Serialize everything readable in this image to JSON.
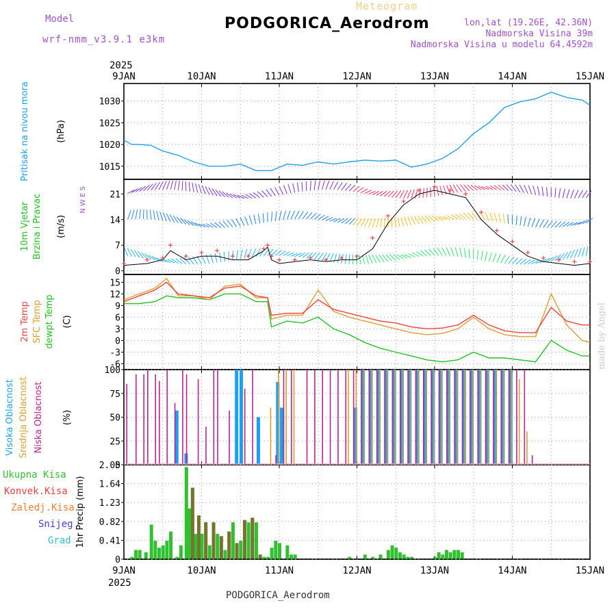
{
  "header": {
    "title": "PODGORICA_Aerodrom",
    "subtitle": "Meteogram",
    "model_label": "Model",
    "model_name": "wrf-nmm_v3.9.1 e3km",
    "lonlat": "lon,lat (19.26E, 42.36N)",
    "altitude": "Nadmorska Visina 39m",
    "model_altitude": "Nadmorska Visina u modelu 64.4592m",
    "year_top": "2025",
    "year_bottom": "2025",
    "footer": "PODGORICA_Aerodrom",
    "credit": "made by Angel"
  },
  "colors": {
    "pressure": "#1ea0f0",
    "wind_label": "#20c020",
    "temp2m": "#f04040",
    "sfc": "#d8a030",
    "dewpt": "#20c020",
    "high_cloud": "#1ea0f0",
    "mid_cloud": "#d8a030",
    "low_cloud": "#c02090",
    "rain": "#30c030",
    "conv": "#f04040",
    "frz": "#f08030",
    "snow": "#4040e0",
    "grad": "#30c0c0",
    "purple": "#a050d0"
  },
  "chart_data": [
    {
      "type": "line",
      "panel": "pressure",
      "ylabel_main": "Pritisak na nivou mora",
      "ylabel_unit": "(hPa)",
      "ylim": [
        1012,
        1034
      ],
      "yticks": [
        1015,
        1020,
        1025,
        1030
      ],
      "x_days": [
        0,
        0.1,
        0.2,
        0.35,
        0.5,
        0.7,
        0.9,
        1.1,
        1.3,
        1.5,
        1.7,
        1.9,
        2.1,
        2.3,
        2.5,
        2.7,
        2.9,
        3.1,
        3.3,
        3.5,
        3.7,
        3.9,
        4.1,
        4.3,
        4.5,
        4.7,
        4.9,
        5.1,
        5.3,
        5.5,
        5.7,
        5.9,
        6.0
      ],
      "values": [
        1021,
        1020,
        1020,
        1019.8,
        1018.5,
        1017.5,
        1016,
        1015,
        1015,
        1015.5,
        1014,
        1014,
        1015.5,
        1015.2,
        1016,
        1015.5,
        1016,
        1016.4,
        1016.2,
        1016.4,
        1014.8,
        1015.5,
        1016.8,
        1019,
        1022.5,
        1025,
        1028.5,
        1029.8,
        1030.5,
        1032,
        1030.8,
        1030.2,
        1029
      ]
    },
    {
      "type": "line",
      "panel": "wind",
      "ylabel_main": "10m Vjetar",
      "ylabel_main2": "Brzina i Pravac",
      "ylabel_unit": "(m/s)",
      "compass": "N W E S",
      "ylim": [
        -1,
        25
      ],
      "yticks": [
        0,
        7,
        14,
        21
      ],
      "x_days": [
        0,
        0.3,
        0.5,
        0.6,
        0.8,
        1.0,
        1.2,
        1.4,
        1.6,
        1.8,
        1.85,
        1.9,
        2.0,
        2.2,
        2.4,
        2.6,
        2.8,
        3.0,
        3.2,
        3.4,
        3.6,
        3.8,
        4.0,
        4.2,
        4.4,
        4.6,
        4.8,
        5.0,
        5.2,
        5.4,
        5.6,
        5.8,
        6.0
      ],
      "speed": [
        1.5,
        2,
        3,
        5.5,
        3,
        4,
        4,
        3,
        3,
        5.5,
        6.5,
        3,
        2,
        2.5,
        3,
        2.5,
        3,
        3,
        6,
        13,
        18,
        21,
        22,
        21,
        20,
        14,
        10,
        7,
        4,
        2.5,
        2,
        1.5,
        2
      ],
      "gust": [
        2,
        3,
        3.5,
        7,
        4,
        5,
        5.5,
        4,
        4,
        6,
        7,
        4,
        3,
        3,
        3.5,
        3,
        3.5,
        4,
        9,
        15,
        19,
        22,
        23,
        22,
        21,
        16,
        11,
        8,
        5,
        3.5,
        3,
        2.5,
        2.5
      ]
    },
    {
      "type": "line",
      "panel": "temperature",
      "ylabel_main": "2m Temp",
      "ylabel_main2": "SFC Temp",
      "ylabel_main3": "dewpt Temp",
      "ylabel_unit": "(C)",
      "ylim": [
        -7.5,
        17
      ],
      "yticks": [
        -6,
        -3,
        0,
        3,
        6,
        9,
        12,
        15
      ],
      "x_days": [
        0,
        0.2,
        0.4,
        0.55,
        0.7,
        0.9,
        1.1,
        1.3,
        1.5,
        1.7,
        1.85,
        1.9,
        2.1,
        2.3,
        2.5,
        2.7,
        2.9,
        3.1,
        3.3,
        3.5,
        3.7,
        3.9,
        4.1,
        4.3,
        4.5,
        4.7,
        4.9,
        5.1,
        5.3,
        5.5,
        5.7,
        5.9,
        6.0
      ],
      "temp2m": [
        10,
        11.5,
        13,
        15,
        12,
        11.5,
        11,
        13.5,
        14,
        11.5,
        11,
        6.5,
        7,
        7,
        10.5,
        8,
        7,
        6,
        5,
        4.5,
        3.5,
        3,
        3.2,
        4,
        6.5,
        4,
        2.5,
        2,
        2,
        8.5,
        5,
        4,
        4
      ],
      "sfc": [
        10.5,
        12,
        13.5,
        16,
        11.5,
        11.5,
        10.5,
        14,
        14.5,
        11,
        11,
        5.5,
        6.5,
        6.5,
        13,
        7.5,
        6,
        5,
        4,
        3,
        2,
        1.5,
        1.8,
        3,
        6,
        3,
        1.5,
        1,
        1,
        12,
        4,
        0,
        -0.5
      ],
      "dewpt": [
        9.5,
        9.5,
        10,
        11.5,
        11,
        11,
        10.5,
        12,
        12,
        10,
        10,
        3.5,
        5,
        4.5,
        6,
        3,
        1.5,
        -0.5,
        -2,
        -3,
        -4,
        -5,
        -5.5,
        -5,
        -3,
        -4.5,
        -4.5,
        -5,
        -5.5,
        0,
        -2.5,
        -4,
        -4
      ]
    },
    {
      "type": "bar",
      "panel": "cloud",
      "ylabel_main": "Visoka Oblacnost",
      "ylabel_main2": "Srednja Oblacnost",
      "ylabel_main3": "Niska Oblacnost",
      "ylabel_unit": "(%)",
      "ylim": [
        0,
        100
      ],
      "yticks": [
        0,
        25,
        50,
        75,
        100
      ],
      "low_x": [
        0.03,
        0.15,
        0.25,
        0.3,
        0.4,
        0.45,
        0.55,
        0.65,
        0.75,
        0.8,
        0.95,
        1.05,
        1.15,
        1.2,
        1.35,
        1.55,
        1.65,
        1.95,
        2.05,
        2.15,
        2.35,
        2.45,
        2.55,
        2.65,
        2.75,
        2.85,
        2.95,
        3.05,
        3.15,
        3.25,
        3.35,
        3.45,
        3.55,
        3.65,
        3.75,
        3.85,
        3.95,
        4.05,
        4.15,
        4.25,
        4.35,
        4.45,
        4.55,
        4.65,
        4.75,
        4.85,
        4.95,
        5.05,
        5.15,
        5.25
      ],
      "low_v": [
        85,
        95,
        95,
        100,
        95,
        88,
        100,
        65,
        100,
        95,
        90,
        40,
        100,
        100,
        57,
        80,
        100,
        10,
        100,
        100,
        100,
        100,
        100,
        100,
        100,
        100,
        100,
        100,
        100,
        100,
        100,
        100,
        100,
        100,
        100,
        100,
        100,
        100,
        100,
        100,
        100,
        100,
        100,
        100,
        100,
        100,
        100,
        100,
        100,
        10
      ],
      "mid_x": [
        1.9,
        2.0,
        2.1,
        2.2,
        2.9,
        3.0,
        3.1,
        3.2,
        3.3,
        3.4,
        3.5,
        3.6,
        3.7,
        3.8,
        3.9,
        4.0,
        4.1,
        4.2,
        4.3,
        4.4,
        4.5,
        4.6,
        4.7,
        4.8,
        4.9,
        5.0,
        5.1,
        5.2
      ],
      "mid_v": [
        60,
        100,
        100,
        100,
        100,
        100,
        100,
        100,
        100,
        100,
        100,
        100,
        100,
        100,
        100,
        100,
        100,
        100,
        100,
        100,
        100,
        100,
        100,
        100,
        100,
        100,
        90,
        35
      ],
      "high_x": [
        0.65,
        0.77,
        1.42,
        1.48,
        1.7,
        1.95,
        2.0,
        2.95,
        3.05,
        3.15,
        3.25,
        3.35,
        3.45,
        3.55,
        3.65,
        3.75,
        3.85,
        3.95,
        4.05,
        4.15,
        4.25,
        4.35,
        4.45,
        4.55,
        4.65,
        4.75,
        4.85,
        4.95
      ],
      "high_v": [
        57,
        12,
        100,
        100,
        50,
        87,
        60,
        60,
        100,
        100,
        100,
        100,
        100,
        100,
        100,
        100,
        100,
        100,
        100,
        100,
        100,
        100,
        100,
        100,
        100,
        100,
        100,
        100
      ]
    },
    {
      "type": "bar",
      "panel": "precip",
      "ylabel_main": "1hr Precip (mm)",
      "legend": [
        "Ukupna Kisa",
        "Konvek.Kisa",
        "Zaledj.Kisa",
        "Snijeg",
        "Grad"
      ],
      "ylim": [
        0,
        2.05
      ],
      "yticks": [
        0,
        0.41,
        0.82,
        1.23,
        1.64,
        2.05
      ],
      "rain_x": [
        0.1,
        0.15,
        0.2,
        0.28,
        0.35,
        0.4,
        0.45,
        0.5,
        0.55,
        0.6,
        0.68,
        0.73,
        0.8,
        0.84,
        0.88,
        0.92,
        0.96,
        1.0,
        1.05,
        1.1,
        1.15,
        1.2,
        1.25,
        1.3,
        1.35,
        1.4,
        1.45,
        1.5,
        1.55,
        1.6,
        1.65,
        1.7,
        1.75,
        1.8,
        1.85,
        1.9,
        1.95,
        2.0,
        2.1,
        2.15,
        2.2,
        2.9,
        3.1,
        3.2,
        3.3,
        3.4,
        3.45,
        3.5,
        3.55,
        3.6,
        3.65,
        3.7,
        4.0,
        4.05,
        4.1,
        4.15,
        4.2,
        4.25,
        4.3,
        4.35
      ],
      "rain_v": [
        0.05,
        0.2,
        0.2,
        0.15,
        0.75,
        0.4,
        0.25,
        0.3,
        0.4,
        0.6,
        0.05,
        0.3,
        2.0,
        1.1,
        1.55,
        0.55,
        0.95,
        0.55,
        0.8,
        0.3,
        0.8,
        0.55,
        0.5,
        0.2,
        0.6,
        0.8,
        0.35,
        0.4,
        0.85,
        0.8,
        0.9,
        0.8,
        0.1,
        0.05,
        0.05,
        0.25,
        0.4,
        0.35,
        0.3,
        0.1,
        0.1,
        0.05,
        0.1,
        0.05,
        0.1,
        0.2,
        0.3,
        0.25,
        0.15,
        0.1,
        0.05,
        0.05,
        0.05,
        0.15,
        0.1,
        0.2,
        0.15,
        0.2,
        0.2,
        0.15
      ]
    }
  ],
  "axes": {
    "day_labels": [
      "9JAN",
      "10JAN",
      "11JAN",
      "12JAN",
      "13JAN",
      "14JAN",
      "15JAN"
    ]
  }
}
